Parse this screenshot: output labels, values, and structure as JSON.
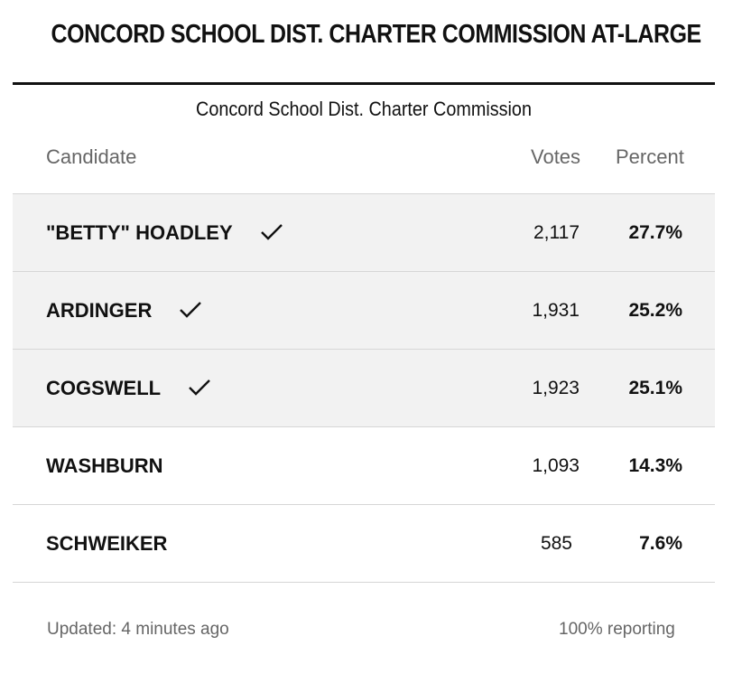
{
  "title": "CONCORD SCHOOL DIST. CHARTER COMMISSION AT-LARGE",
  "subtitle": "Concord School Dist. Charter Commission",
  "columns": {
    "candidate": "Candidate",
    "votes": "Votes",
    "percent": "Percent"
  },
  "rows": [
    {
      "name": "\"BETTY\" HOADLEY",
      "votes": "2,117",
      "percent": "27.7%",
      "winner": true
    },
    {
      "name": "ARDINGER",
      "votes": "1,931",
      "percent": "25.2%",
      "winner": true
    },
    {
      "name": "COGSWELL",
      "votes": "1,923",
      "percent": "25.1%",
      "winner": true
    },
    {
      "name": "WASHBURN",
      "votes": "1,093",
      "percent": "14.3%",
      "winner": false
    },
    {
      "name": "SCHWEIKER",
      "votes": "585",
      "percent": "7.6%",
      "winner": false
    }
  ],
  "footer": {
    "updated": "Updated: 4 minutes ago",
    "reporting": "100% reporting"
  },
  "icons": {
    "winner": "checkmark-icon"
  }
}
